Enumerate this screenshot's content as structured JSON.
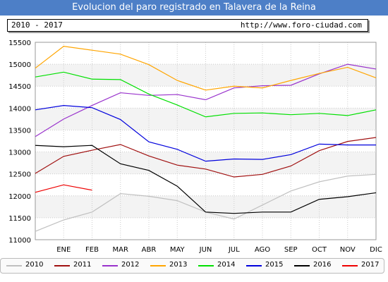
{
  "title": "Evolucion del paro registrado en Talavera de la Reina",
  "info": {
    "period": "2010 - 2017",
    "url": "http://www.foro-ciudad.com"
  },
  "colors": {
    "title_bg": "#4d7fc7",
    "band": "#f3f3f3",
    "grid": "#cccccc"
  },
  "chart_data": {
    "type": "line",
    "categories": [
      "",
      "ENE",
      "FEB",
      "MAR",
      "ABR",
      "MAY",
      "JUN",
      "JUL",
      "AGO",
      "SEP",
      "OCT",
      "NOV",
      "DIC"
    ],
    "yticks": [
      11000,
      11500,
      12000,
      12500,
      13000,
      13500,
      14000,
      14500,
      15000,
      15500
    ],
    "ylim": [
      11000,
      15500
    ],
    "grid": true,
    "legend_position": "bottom",
    "series": [
      {
        "name": "2010",
        "color": "#c0c0c0",
        "values": [
          11190,
          11450,
          11630,
          12050,
          11990,
          11890,
          11630,
          11470,
          11790,
          12110,
          12320,
          12450,
          12490
        ]
      },
      {
        "name": "2011",
        "color": "#a01010",
        "values": [
          12510,
          12900,
          13040,
          13170,
          12910,
          12700,
          12610,
          12430,
          12490,
          12680,
          13030,
          13240,
          13330
        ]
      },
      {
        "name": "2012",
        "color": "#9932cc",
        "values": [
          13350,
          13750,
          14060,
          14350,
          14290,
          14310,
          14190,
          14460,
          14510,
          14520,
          14780,
          15000,
          14890
        ]
      },
      {
        "name": "2013",
        "color": "#ffa500",
        "values": [
          14910,
          15410,
          15320,
          15230,
          14990,
          14630,
          14410,
          14500,
          14460,
          14630,
          14790,
          14930,
          14690
        ]
      },
      {
        "name": "2014",
        "color": "#00e000",
        "values": [
          14710,
          14820,
          14660,
          14650,
          14320,
          14070,
          13800,
          13880,
          13890,
          13850,
          13880,
          13830,
          13960
        ]
      },
      {
        "name": "2015",
        "color": "#0000dd",
        "values": [
          13960,
          14060,
          14010,
          13740,
          13230,
          13060,
          12790,
          12840,
          12830,
          12940,
          13180,
          13160,
          13160
        ]
      },
      {
        "name": "2016",
        "color": "#000000",
        "values": [
          13150,
          13120,
          13150,
          12730,
          12580,
          12220,
          11630,
          11600,
          11630,
          11630,
          11920,
          11980,
          12070
        ]
      },
      {
        "name": "2017",
        "color": "#ee0000",
        "values": [
          12080,
          12250,
          12130,
          null,
          null,
          null,
          null,
          null,
          null,
          null,
          null,
          null,
          null
        ]
      }
    ]
  }
}
